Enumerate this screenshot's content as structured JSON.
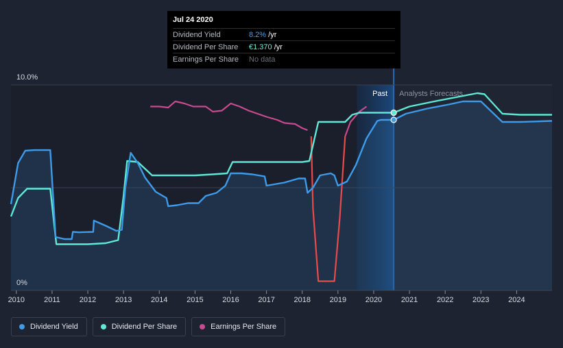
{
  "tooltip": {
    "date": "Jul 24 2020",
    "rows": [
      {
        "label": "Dividend Yield",
        "value": "8.2%",
        "unit": " /yr",
        "color": "#4aa3ef"
      },
      {
        "label": "Dividend Per Share",
        "value": "€1.370",
        "unit": " /yr",
        "color": "#6ff0dd"
      },
      {
        "label": "Earnings Per Share",
        "value": "No data",
        "unit": "",
        "color": "#6b7079"
      }
    ]
  },
  "legend": [
    {
      "label": "Dividend Yield",
      "color": "#3d9be9"
    },
    {
      "label": "Dividend Per Share",
      "color": "#5ee8d6"
    },
    {
      "label": "Earnings Per Share",
      "color": "#c94a8f"
    }
  ],
  "chart_data": {
    "type": "line",
    "xlim": [
      2009.85,
      2024.99
    ],
    "ylim": [
      0,
      10
    ],
    "y_tick_labels": [
      {
        "value": 10,
        "label": "10.0%"
      },
      {
        "value": 0,
        "label": "0%"
      }
    ],
    "x_ticks": [
      2010,
      2011,
      2012,
      2013,
      2014,
      2015,
      2016,
      2017,
      2018,
      2019,
      2020,
      2021,
      2022,
      2023,
      2024
    ],
    "past_label": "Past",
    "forecast_label": "Analysts Forecasts",
    "past_end": 2020.56,
    "shade_start": 2019.53,
    "series": [
      {
        "name": "Dividend Yield",
        "color": "#3d9be9",
        "points": [
          [
            2009.85,
            4.2
          ],
          [
            2010.05,
            6.2
          ],
          [
            2010.25,
            6.8
          ],
          [
            2010.5,
            6.83
          ],
          [
            2010.95,
            6.83
          ],
          [
            2011.1,
            2.6
          ],
          [
            2011.35,
            2.5
          ],
          [
            2011.55,
            2.5
          ],
          [
            2011.58,
            2.85
          ],
          [
            2011.75,
            2.83
          ],
          [
            2012.15,
            2.85
          ],
          [
            2012.17,
            3.4
          ],
          [
            2012.5,
            3.15
          ],
          [
            2012.8,
            2.9
          ],
          [
            2012.95,
            2.95
          ],
          [
            2013.05,
            5.0
          ],
          [
            2013.2,
            6.7
          ],
          [
            2013.4,
            6.2
          ],
          [
            2013.6,
            5.5
          ],
          [
            2013.9,
            4.8
          ],
          [
            2014.2,
            4.5
          ],
          [
            2014.25,
            4.1
          ],
          [
            2014.5,
            4.15
          ],
          [
            2014.8,
            4.25
          ],
          [
            2015.1,
            4.25
          ],
          [
            2015.3,
            4.6
          ],
          [
            2015.6,
            4.75
          ],
          [
            2015.85,
            5.1
          ],
          [
            2016.0,
            5.7
          ],
          [
            2016.3,
            5.7
          ],
          [
            2016.6,
            5.65
          ],
          [
            2016.95,
            5.55
          ],
          [
            2017.0,
            5.1
          ],
          [
            2017.5,
            5.25
          ],
          [
            2017.9,
            5.45
          ],
          [
            2018.08,
            5.45
          ],
          [
            2018.15,
            4.75
          ],
          [
            2018.3,
            5.0
          ],
          [
            2018.5,
            5.6
          ],
          [
            2018.8,
            5.7
          ],
          [
            2018.9,
            5.6
          ],
          [
            2019.0,
            5.1
          ],
          [
            2019.25,
            5.3
          ],
          [
            2019.5,
            6.1
          ],
          [
            2019.8,
            7.4
          ],
          [
            2020.1,
            8.25
          ],
          [
            2020.2,
            8.3
          ],
          [
            2020.56,
            8.3
          ],
          [
            2020.9,
            8.6
          ],
          [
            2021.5,
            8.85
          ],
          [
            2022.1,
            9.05
          ],
          [
            2022.5,
            9.2
          ],
          [
            2023.0,
            9.2
          ],
          [
            2023.3,
            8.7
          ],
          [
            2023.6,
            8.2
          ],
          [
            2024.1,
            8.2
          ],
          [
            2024.99,
            8.25
          ]
        ]
      },
      {
        "name": "Dividend Per Share",
        "color": "#5ee8d6",
        "points": [
          [
            2009.85,
            3.6
          ],
          [
            2010.05,
            4.5
          ],
          [
            2010.3,
            4.95
          ],
          [
            2010.95,
            4.95
          ],
          [
            2011.12,
            2.25
          ],
          [
            2011.5,
            2.25
          ],
          [
            2012.0,
            2.25
          ],
          [
            2012.5,
            2.3
          ],
          [
            2012.85,
            2.45
          ],
          [
            2013.0,
            4.6
          ],
          [
            2013.1,
            6.3
          ],
          [
            2013.4,
            6.25
          ],
          [
            2013.8,
            5.6
          ],
          [
            2014.5,
            5.6
          ],
          [
            2015.0,
            5.6
          ],
          [
            2015.5,
            5.65
          ],
          [
            2015.9,
            5.7
          ],
          [
            2016.05,
            6.25
          ],
          [
            2016.5,
            6.25
          ],
          [
            2018.0,
            6.25
          ],
          [
            2018.2,
            6.3
          ],
          [
            2018.45,
            8.2
          ],
          [
            2019.2,
            8.2
          ],
          [
            2019.4,
            8.55
          ],
          [
            2019.6,
            8.65
          ],
          [
            2020.56,
            8.65
          ],
          [
            2021.0,
            8.95
          ],
          [
            2021.7,
            9.2
          ],
          [
            2022.3,
            9.4
          ],
          [
            2022.9,
            9.6
          ],
          [
            2023.1,
            9.55
          ],
          [
            2023.6,
            8.6
          ],
          [
            2024.1,
            8.55
          ],
          [
            2024.99,
            8.55
          ]
        ]
      },
      {
        "name": "Earnings Per Share",
        "color": "#c94a8f",
        "points": [
          [
            2013.75,
            8.95
          ],
          [
            2014.0,
            8.95
          ],
          [
            2014.25,
            8.9
          ],
          [
            2014.45,
            9.2
          ],
          [
            2014.7,
            9.1
          ],
          [
            2014.95,
            8.95
          ],
          [
            2015.3,
            8.95
          ],
          [
            2015.5,
            8.7
          ],
          [
            2015.75,
            8.75
          ],
          [
            2016.0,
            9.1
          ],
          [
            2016.25,
            8.95
          ],
          [
            2016.5,
            8.75
          ],
          [
            2016.75,
            8.6
          ],
          [
            2017.0,
            8.45
          ],
          [
            2017.3,
            8.3
          ],
          [
            2017.5,
            8.15
          ],
          [
            2017.8,
            8.1
          ],
          [
            2018.0,
            7.9
          ],
          [
            2018.15,
            7.8
          ],
          [
            2018.25,
            7.5
          ],
          [
            2018.3,
            4.0
          ],
          [
            2018.45,
            0.45
          ],
          [
            2018.7,
            0.45
          ],
          [
            2018.9,
            0.45
          ],
          [
            2019.05,
            3.5
          ],
          [
            2019.2,
            7.5
          ],
          [
            2019.35,
            8.2
          ],
          [
            2019.6,
            8.7
          ],
          [
            2019.8,
            8.95
          ]
        ],
        "red_range": [
          2018.2,
          2019.1
        ],
        "red_color": "#e94b4b"
      }
    ],
    "markers": [
      {
        "x": 2020.56,
        "y": 8.65,
        "color": "#5ee8d6"
      },
      {
        "x": 2020.56,
        "y": 8.3,
        "color": "#3d9be9"
      }
    ]
  }
}
